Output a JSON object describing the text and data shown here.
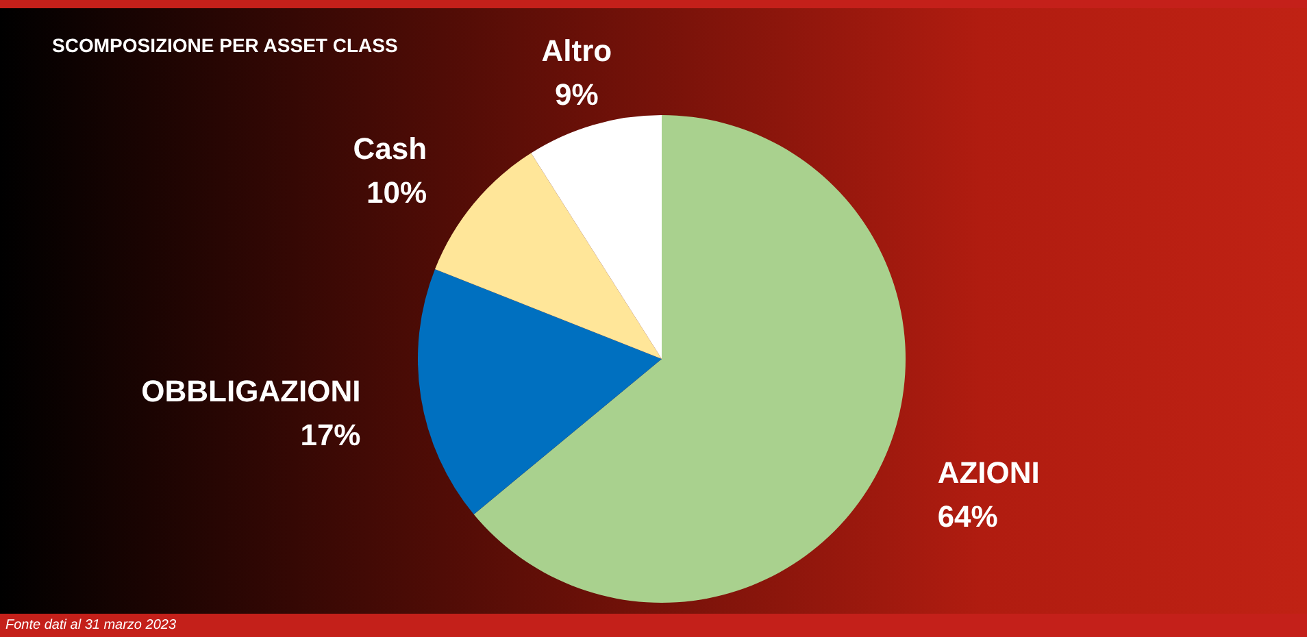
{
  "chart_data": {
    "type": "pie",
    "title": "SCOMPOSIZIONE PER ASSET CLASS",
    "categories": [
      "AZIONI",
      "OBBLIGAZIONI",
      "Cash",
      "Altro"
    ],
    "values": [
      64,
      17,
      10,
      9
    ],
    "colors": [
      "#a9d18e",
      "#0070c0",
      "#ffe699",
      "#ffffff"
    ],
    "value_labels": [
      "64%",
      "17%",
      "10%",
      "9%"
    ],
    "annotations": [
      "Fonte dati al 31 marzo 2023"
    ]
  }
}
